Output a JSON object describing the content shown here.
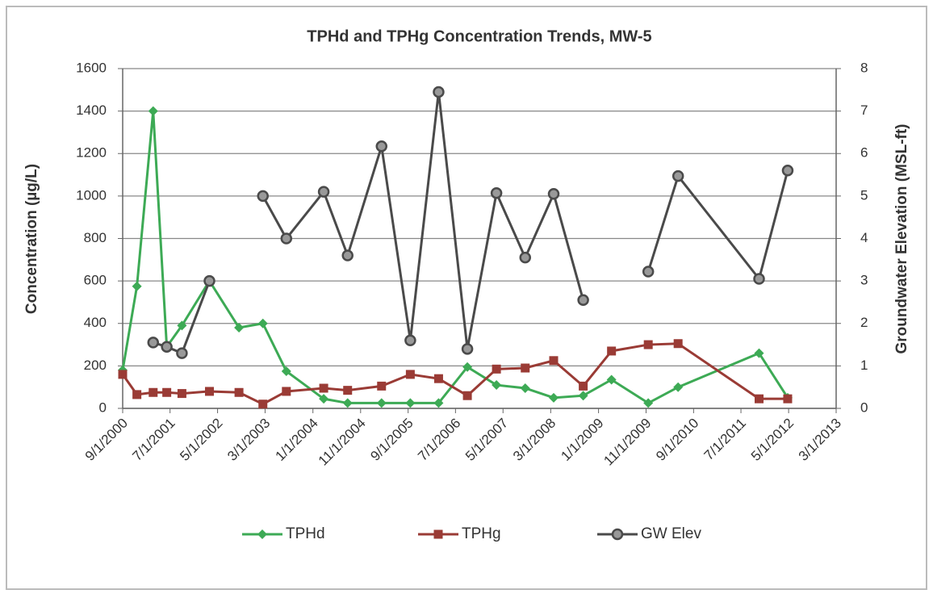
{
  "chart_data": {
    "type": "line",
    "title": "TPHd and TPHg Concentration Trends, MW-5",
    "y_label": "Concentration (µg/L)",
    "y2_label": "Groundwater Elevation (MSL-ft)",
    "x": [
      "9/1/2000",
      "12/1/2000",
      "3/15/2001",
      "6/10/2001",
      "9/15/2001",
      "3/10/2002",
      "9/15/2002",
      "2/15/2003",
      "7/15/2003",
      "3/10/2004",
      "8/10/2004",
      "3/15/2005",
      "9/15/2005",
      "3/15/2006",
      "9/15/2006",
      "3/20/2007",
      "9/20/2007",
      "3/20/2008",
      "9/25/2008",
      "3/25/2009",
      "11/15/2009",
      "5/25/2010",
      "10/25/2011",
      "4/25/2012"
    ],
    "xlim": [
      "9/1/2000",
      "3/1/2013"
    ],
    "xticks": [
      "9/1/2000",
      "7/1/2001",
      "5/1/2002",
      "3/1/2003",
      "1/1/2004",
      "11/1/2004",
      "9/1/2005",
      "7/1/2006",
      "5/1/2007",
      "3/1/2008",
      "1/1/2009",
      "11/1/2009",
      "9/1/2010",
      "7/1/2011",
      "5/1/2012",
      "3/1/2013"
    ],
    "ylim": [
      0,
      1600
    ],
    "yticks": [
      0,
      200,
      400,
      600,
      800,
      1000,
      1200,
      1400,
      1600
    ],
    "y2lim": [
      0,
      8
    ],
    "y2ticks": [
      0,
      1,
      2,
      3,
      4,
      5,
      6,
      7,
      8
    ],
    "grid": true,
    "legend": "bottom",
    "series": [
      {
        "name": "TPHd",
        "color": "#3daa55",
        "marker": "diamond",
        "values": [
          180,
          575,
          1400,
          290,
          390,
          600,
          380,
          400,
          175,
          45,
          25,
          25,
          25,
          25,
          195,
          110,
          95,
          50,
          60,
          135,
          25,
          100,
          260,
          50
        ]
      },
      {
        "name": "TPHg",
        "color": "#9a3b35",
        "marker": "square",
        "values": [
          160,
          65,
          75,
          75,
          70,
          80,
          75,
          20,
          80,
          95,
          85,
          105,
          160,
          140,
          60,
          185,
          190,
          225,
          105,
          270,
          300,
          305,
          45,
          45
        ]
      },
      {
        "name": "GW Elev",
        "color": "#4a4a4a",
        "marker": "circle",
        "axis": "y2",
        "values": [
          null,
          null,
          1.55,
          1.45,
          1.3,
          3.0,
          null,
          5.0,
          4.0,
          5.1,
          3.6,
          6.17,
          1.6,
          7.45,
          1.4,
          5.07,
          3.55,
          5.05,
          2.55,
          null,
          3.22,
          5.47,
          3.05,
          5.6
        ]
      }
    ]
  }
}
